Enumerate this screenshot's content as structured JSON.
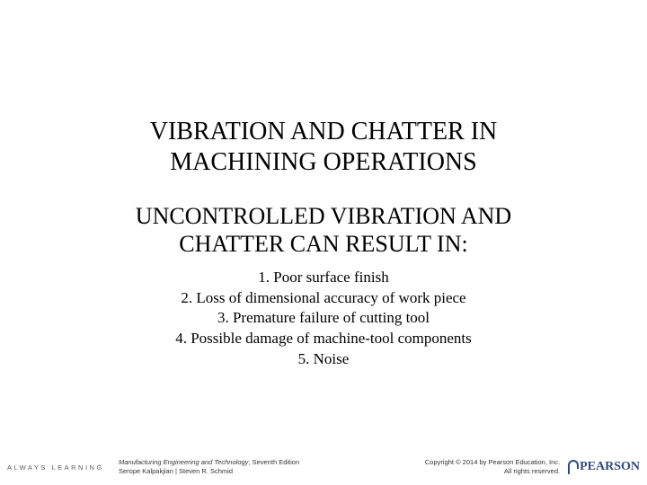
{
  "slide": {
    "title_line1": "VIBRATION AND CHATTER IN",
    "title_line2": "MACHINING OPERATIONS",
    "subtitle_line1": "UNCONTROLLED VIBRATION AND",
    "subtitle_line2": "CHATTER CAN RESULT IN:",
    "items": {
      "i1": "1. Poor surface finish",
      "i2": "2. Loss of dimensional accuracy of work piece",
      "i3": "3. Premature failure of cutting tool",
      "i4": "4. Possible damage of machine-tool components",
      "i5": "5. Noise"
    }
  },
  "footer": {
    "always_learning": "ALWAYS LEARNING",
    "book_title": "Manufacturing Engineering and Technology",
    "edition": ", Seventh Edition",
    "authors": "Serope Kalpakjian | Steven R. Schmid",
    "copyright_line1": "Copyright © 2014 by Pearson Education, Inc.",
    "copyright_line2": "All rights reserved.",
    "brand": "PEARSON"
  },
  "colors": {
    "text": "#000000",
    "footer_text": "#333333",
    "brand": "#2e4a7d",
    "background": "#ffffff"
  },
  "typography": {
    "title_fontsize": 28,
    "subtitle_fontsize": 26,
    "list_fontsize": 17,
    "footer_fontsize": 7.5,
    "brand_fontsize": 14,
    "body_family": "Times New Roman",
    "footer_family": "Verdana"
  }
}
